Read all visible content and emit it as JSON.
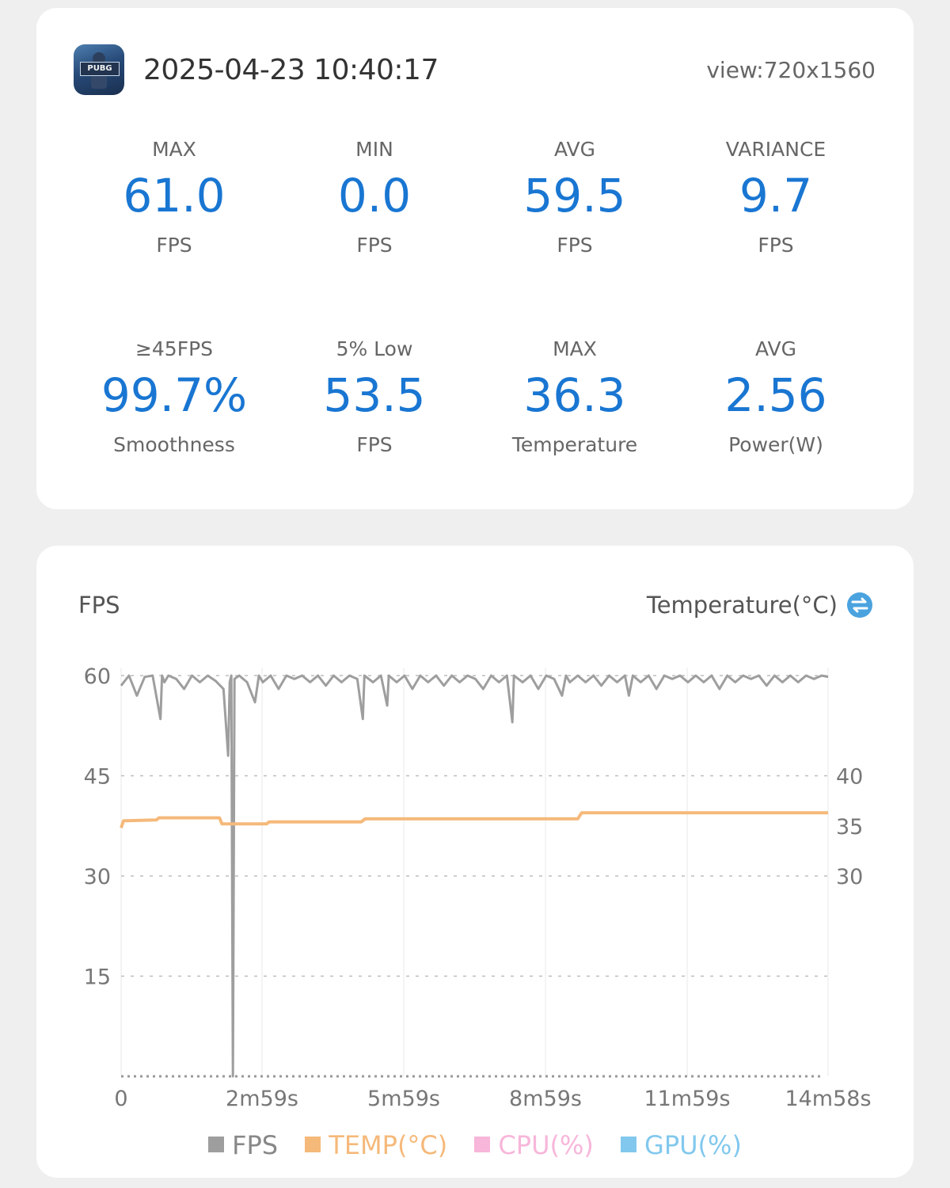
{
  "header": {
    "app_icon": "pubg-mobile-app-icon",
    "app_icon_text": "PUBG",
    "timestamp": "2025-04-23 10:40:17",
    "view": "view:720x1560"
  },
  "stats": [
    {
      "label": "MAX",
      "value": "61.0",
      "unit": "FPS"
    },
    {
      "label": "MIN",
      "value": "0.0",
      "unit": "FPS"
    },
    {
      "label": "AVG",
      "value": "59.5",
      "unit": "FPS"
    },
    {
      "label": "VARIANCE",
      "value": "9.7",
      "unit": "FPS"
    },
    {
      "label": "≥45FPS",
      "value": "99.7%",
      "unit": "Smoothness"
    },
    {
      "label": "5% Low",
      "value": "53.5",
      "unit": "FPS"
    },
    {
      "label": "MAX",
      "value": "36.3",
      "unit": "Temperature"
    },
    {
      "label": "AVG",
      "value": "2.56",
      "unit": "Power(W)"
    }
  ],
  "chart": {
    "left_title": "FPS",
    "right_title": "Temperature(°C)",
    "swap_icon": "swap-icon",
    "colors": {
      "fps": "#9e9e9e",
      "temp": "#f5b97a",
      "cpu": "#f7b6da",
      "gpu": "#82c8ee",
      "value_blue": "#1976d2"
    }
  },
  "chart_data": {
    "type": "line",
    "x_ticks": [
      "0",
      "2m59s",
      "5m59s",
      "8m59s",
      "11m59s",
      "14m58s"
    ],
    "y_left_ticks": [
      "60",
      "45",
      "30",
      "15"
    ],
    "y_right_ticks": [
      "40",
      "35",
      "30"
    ],
    "ylim_left": [
      0,
      60
    ],
    "ylim_right_ticks_values": [
      40,
      35,
      30
    ],
    "x_range_s": [
      0,
      898
    ],
    "series": [
      {
        "name": "FPS",
        "points": [
          [
            0,
            58.5
          ],
          [
            10,
            60
          ],
          [
            20,
            57
          ],
          [
            30,
            59.8
          ],
          [
            40,
            60
          ],
          [
            50,
            53.5
          ],
          [
            52,
            60
          ],
          [
            55,
            59
          ],
          [
            60,
            60
          ],
          [
            70,
            59.5
          ],
          [
            80,
            58
          ],
          [
            90,
            60
          ],
          [
            100,
            59
          ],
          [
            110,
            60
          ],
          [
            120,
            59.2
          ],
          [
            130,
            58
          ],
          [
            136,
            48
          ],
          [
            138,
            59
          ],
          [
            140,
            60
          ],
          [
            142,
            0
          ],
          [
            144,
            59.5
          ],
          [
            150,
            60
          ],
          [
            160,
            59
          ],
          [
            170,
            56
          ],
          [
            175,
            60
          ],
          [
            180,
            59
          ],
          [
            190,
            60
          ],
          [
            200,
            58
          ],
          [
            210,
            60
          ],
          [
            220,
            59.5
          ],
          [
            230,
            60
          ],
          [
            240,
            59
          ],
          [
            250,
            60
          ],
          [
            260,
            58.5
          ],
          [
            270,
            60
          ],
          [
            280,
            59
          ],
          [
            290,
            60
          ],
          [
            300,
            59.5
          ],
          [
            307,
            53.5
          ],
          [
            309,
            60
          ],
          [
            320,
            59
          ],
          [
            330,
            60
          ],
          [
            338,
            55.5
          ],
          [
            340,
            60
          ],
          [
            350,
            59
          ],
          [
            360,
            60
          ],
          [
            370,
            58
          ],
          [
            380,
            60
          ],
          [
            390,
            59
          ],
          [
            400,
            60
          ],
          [
            410,
            58.5
          ],
          [
            420,
            60
          ],
          [
            430,
            59
          ],
          [
            440,
            60
          ],
          [
            450,
            59.5
          ],
          [
            460,
            58
          ],
          [
            470,
            60
          ],
          [
            480,
            59
          ],
          [
            490,
            60
          ],
          [
            497,
            53
          ],
          [
            499,
            60
          ],
          [
            510,
            59
          ],
          [
            520,
            60
          ],
          [
            530,
            58
          ],
          [
            540,
            60
          ],
          [
            550,
            59.5
          ],
          [
            560,
            57
          ],
          [
            565,
            60
          ],
          [
            570,
            59
          ],
          [
            580,
            60
          ],
          [
            590,
            59
          ],
          [
            600,
            60
          ],
          [
            610,
            58.5
          ],
          [
            620,
            60
          ],
          [
            630,
            59
          ],
          [
            640,
            60
          ],
          [
            645,
            57
          ],
          [
            650,
            60
          ],
          [
            660,
            59
          ],
          [
            670,
            60
          ],
          [
            680,
            58
          ],
          [
            690,
            60
          ],
          [
            700,
            59.5
          ],
          [
            710,
            60
          ],
          [
            720,
            59
          ],
          [
            730,
            60
          ],
          [
            740,
            59
          ],
          [
            750,
            60
          ],
          [
            760,
            58
          ],
          [
            770,
            60
          ],
          [
            780,
            59
          ],
          [
            790,
            60
          ],
          [
            800,
            59.5
          ],
          [
            810,
            60
          ],
          [
            820,
            58.5
          ],
          [
            830,
            60
          ],
          [
            840,
            59
          ],
          [
            850,
            60
          ],
          [
            860,
            59
          ],
          [
            870,
            60
          ],
          [
            880,
            59.5
          ],
          [
            890,
            60
          ],
          [
            898,
            59.8
          ]
        ]
      },
      {
        "name": "TEMP(°C)",
        "points": [
          [
            0,
            34.8
          ],
          [
            3,
            35.5
          ],
          [
            45,
            35.6
          ],
          [
            48,
            35.8
          ],
          [
            125,
            35.8
          ],
          [
            128,
            35.2
          ],
          [
            185,
            35.2
          ],
          [
            188,
            35.4
          ],
          [
            305,
            35.4
          ],
          [
            310,
            35.7
          ],
          [
            580,
            35.7
          ],
          [
            585,
            36.3
          ],
          [
            898,
            36.3
          ]
        ]
      },
      {
        "name": "CPU(%)",
        "points": []
      },
      {
        "name": "GPU(%)",
        "points": []
      }
    ],
    "legend": [
      "FPS",
      "TEMP(°C)",
      "CPU(%)",
      "GPU(%)"
    ],
    "legend_placement": "bottom-center",
    "grid": true
  }
}
